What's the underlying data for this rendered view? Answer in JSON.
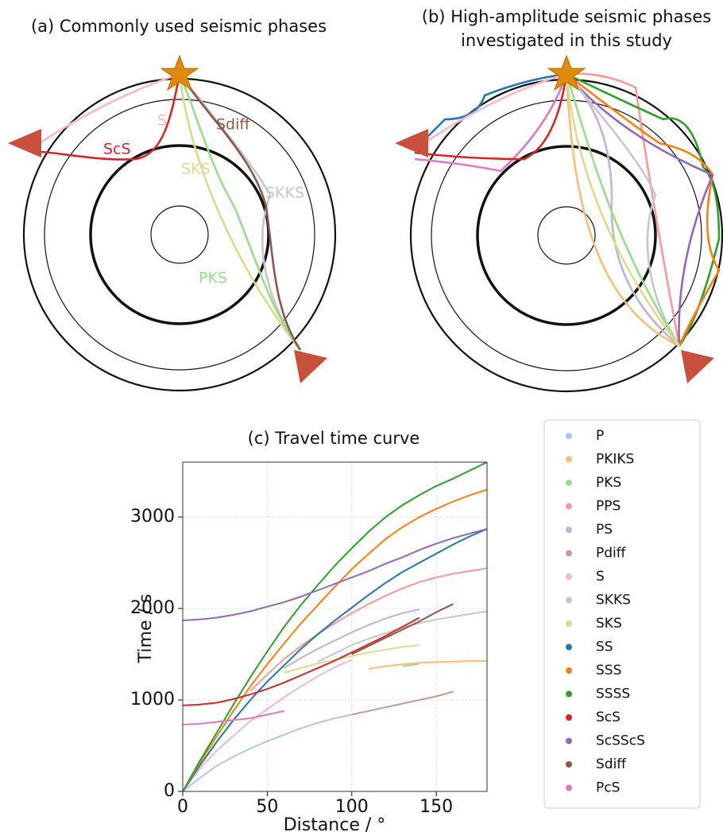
{
  "panel_a": {
    "title": "(a) Commonly used seismic phases",
    "labels": [
      "S",
      "ScS",
      "SKS",
      "Sdiff",
      "SKKS",
      "PKS"
    ]
  },
  "panel_b": {
    "title_lines": [
      "(b) High-amplitude seismic phases",
      "investigated in this study"
    ]
  },
  "chart_data": {
    "type": "line",
    "title": "(c) Travel time curve",
    "x_label": "Distance / °",
    "y_label": "Time / s",
    "x": [
      0,
      10,
      20,
      30,
      40,
      50,
      60,
      70,
      80,
      90,
      100,
      110,
      120,
      130,
      140,
      150,
      160,
      170,
      180
    ],
    "xlim": [
      0,
      180
    ],
    "ylim": [
      0,
      3600
    ],
    "xticks": [
      0,
      50,
      100,
      150
    ],
    "yticks": [
      0,
      1000,
      2000,
      3000
    ],
    "grid": true,
    "series": [
      {
        "name": "P",
        "color": "#aec7e8",
        "values": [
          0,
          145,
          280,
          380,
          470,
          550,
          620,
          690,
          750,
          800,
          840,
          null,
          null,
          null,
          null,
          null,
          null,
          null,
          null
        ]
      },
      {
        "name": "PKIKS",
        "color": "#ffbb78",
        "values": [
          null,
          null,
          null,
          null,
          null,
          null,
          null,
          null,
          null,
          null,
          null,
          1340,
          1370,
          1390,
          1405,
          1415,
          1420,
          1425,
          1425
        ]
      },
      {
        "name": "PKS",
        "color": "#98df8a",
        "values": [
          null,
          null,
          null,
          null,
          null,
          null,
          null,
          null,
          null,
          null,
          null,
          null,
          null,
          1370,
          1395,
          null,
          null,
          null,
          null
        ]
      },
      {
        "name": "PPS",
        "color": "#ff9896",
        "values": [
          null,
          null,
          null,
          null,
          1100,
          1280,
          1450,
          1590,
          1720,
          1840,
          1950,
          2050,
          2140,
          2220,
          2290,
          2340,
          2380,
          2410,
          2440
        ]
      },
      {
        "name": "PS",
        "color": "#c5b0d5",
        "values": [
          null,
          null,
          null,
          null,
          null,
          null,
          1350,
          1460,
          1560,
          1650,
          1740,
          1820,
          1890,
          1950,
          1990,
          null,
          null,
          null,
          null
        ]
      },
      {
        "name": "Pdiff",
        "color": "#c49c94",
        "values": [
          null,
          null,
          null,
          null,
          null,
          null,
          null,
          null,
          null,
          null,
          840,
          880,
          920,
          960,
          1000,
          1040,
          1090,
          null,
          null
        ]
      },
      {
        "name": "S",
        "color": "#f7b6d2",
        "values": [
          0,
          245,
          445,
          610,
          770,
          900,
          1030,
          1150,
          1260,
          1360,
          1440,
          null,
          null,
          null,
          null,
          null,
          null,
          null,
          null
        ]
      },
      {
        "name": "SKKS",
        "color": "#c7c7c7",
        "values": [
          null,
          null,
          null,
          null,
          null,
          null,
          null,
          null,
          1420,
          1510,
          1600,
          1670,
          1730,
          1790,
          1840,
          1880,
          1910,
          1940,
          1970
        ]
      },
      {
        "name": "SKS",
        "color": "#dbdb8d",
        "values": [
          null,
          null,
          null,
          null,
          null,
          null,
          1300,
          1350,
          1400,
          1440,
          1480,
          1520,
          1550,
          1580,
          1600,
          null,
          null,
          null,
          null
        ]
      },
      {
        "name": "SS",
        "color": "#1f77b4",
        "values": [
          0,
          280,
          540,
          780,
          1000,
          1200,
          1380,
          1560,
          1720,
          1870,
          2010,
          2150,
          2280,
          2400,
          2500,
          2600,
          2700,
          2790,
          2870
        ]
      },
      {
        "name": "SSS",
        "color": "#ff7f0e",
        "values": [
          0,
          310,
          600,
          880,
          1150,
          1390,
          1620,
          1840,
          2040,
          2240,
          2430,
          2600,
          2760,
          2890,
          3000,
          3090,
          3170,
          3240,
          3300
        ]
      },
      {
        "name": "SSSS",
        "color": "#2ca02c",
        "values": [
          0,
          330,
          640,
          950,
          1250,
          1530,
          1800,
          2040,
          2260,
          2470,
          2660,
          2840,
          3000,
          3130,
          3240,
          3340,
          3420,
          3510,
          3600
        ]
      },
      {
        "name": "ScS",
        "color": "#d62728",
        "values": [
          940,
          950,
          970,
          1010,
          1060,
          1120,
          1190,
          1270,
          1350,
          1430,
          1520,
          1610,
          1700,
          1800,
          1900,
          null,
          null,
          null,
          null
        ]
      },
      {
        "name": "ScSScS",
        "color": "#9467bd",
        "values": [
          1870,
          1880,
          1900,
          1930,
          1970,
          2020,
          2070,
          2130,
          2200,
          2270,
          2340,
          2410,
          2490,
          2560,
          2640,
          2710,
          2770,
          2820,
          2870
        ]
      },
      {
        "name": "Sdiff",
        "color": "#8c564b",
        "values": [
          null,
          null,
          null,
          null,
          null,
          null,
          null,
          null,
          null,
          null,
          1500,
          1590,
          1680,
          1770,
          1860,
          1960,
          2050,
          null,
          null
        ]
      },
      {
        "name": "PcS",
        "color": "#e377c2",
        "values": [
          730,
          740,
          760,
          780,
          800,
          840,
          880,
          null,
          null,
          null,
          null,
          null,
          null,
          null,
          null,
          null,
          null,
          null,
          null
        ]
      }
    ]
  }
}
